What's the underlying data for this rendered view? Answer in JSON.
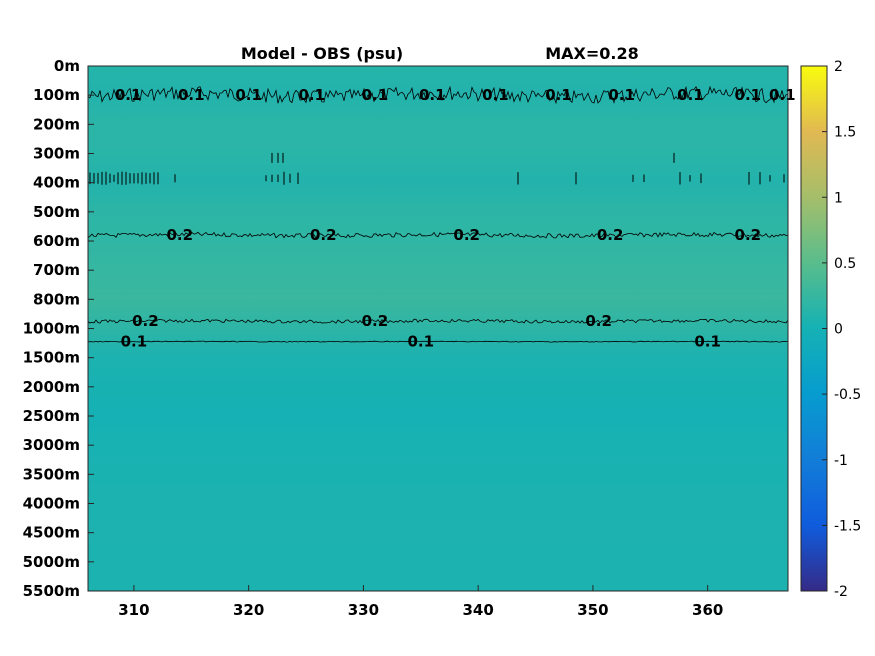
{
  "chart_data": {
    "type": "heatmap",
    "title": "Model - OBS (psu)",
    "subtitle": "MAX=0.28",
    "xlabel": "",
    "ylabel": "",
    "x_ticks": [
      310,
      320,
      330,
      340,
      350,
      360
    ],
    "x_range": [
      306,
      367
    ],
    "y_ticks": [
      "0m",
      "100m",
      "200m",
      "300m",
      "400m",
      "500m",
      "600m",
      "700m",
      "800m",
      "1000m",
      "1500m",
      "2000m",
      "2500m",
      "3000m",
      "3500m",
      "4000m",
      "4500m",
      "5000m",
      "5500m"
    ],
    "colorbar": {
      "ticks": [
        "2",
        "1.5",
        "1",
        "0.5",
        "0",
        "-0.5",
        "-1",
        "-1.5",
        "-2"
      ],
      "range": [
        -2,
        2
      ],
      "colormap": "parula"
    },
    "field_levels": [
      {
        "depth": "0m",
        "value": 0.12
      },
      {
        "depth": "100m",
        "value": 0.1
      },
      {
        "depth": "200m",
        "value": 0.16
      },
      {
        "depth": "300m",
        "value": 0.15
      },
      {
        "depth": "400m",
        "value": 0.1
      },
      {
        "depth": "500m",
        "value": 0.17
      },
      {
        "depth": "600m",
        "value": 0.2
      },
      {
        "depth": "700m",
        "value": 0.24
      },
      {
        "depth": "800m",
        "value": 0.27
      },
      {
        "depth": "1000m",
        "value": 0.18
      },
      {
        "depth": "1500m",
        "value": 0.05
      },
      {
        "depth": "2000m",
        "value": 0.02
      },
      {
        "depth": "2500m",
        "value": 0.0
      },
      {
        "depth": "3000m",
        "value": 0.03
      },
      {
        "depth": "3500m",
        "value": 0.04
      },
      {
        "depth": "4000m",
        "value": 0.05
      },
      {
        "depth": "4500m",
        "value": 0.06
      },
      {
        "depth": "5000m",
        "value": 0.05
      },
      {
        "depth": "5500m",
        "value": 0.05
      }
    ],
    "contours": [
      {
        "value": 0.1,
        "depth_index": 1.0,
        "labels": [
          "0.1",
          "0.1",
          "0.1",
          "0.1",
          "0.1",
          "0.1",
          "0.1",
          "0.1",
          "0.1",
          "0.1",
          "0.1",
          "0.1"
        ],
        "label_x": [
          309.5,
          315,
          320,
          325.5,
          331,
          336,
          341.5,
          347,
          352.5,
          358.5,
          363.5,
          366.5
        ]
      },
      {
        "value": 0.2,
        "depth_index": 5.8,
        "labels": [
          "0.2",
          "0.2",
          "0.2",
          "0.2",
          "0.2"
        ],
        "label_x": [
          314,
          326.5,
          339,
          351.5,
          363.5
        ]
      },
      {
        "value": 0.2,
        "depth_index": 8.75,
        "labels": [
          "0.2",
          "0.2",
          "0.2"
        ],
        "label_x": [
          311,
          331,
          350.5
        ]
      },
      {
        "value": 0.1,
        "depth_index": 9.45,
        "labels": [
          "0.1",
          "0.1",
          "0.1"
        ],
        "label_x": [
          310,
          335,
          360
        ]
      }
    ]
  }
}
